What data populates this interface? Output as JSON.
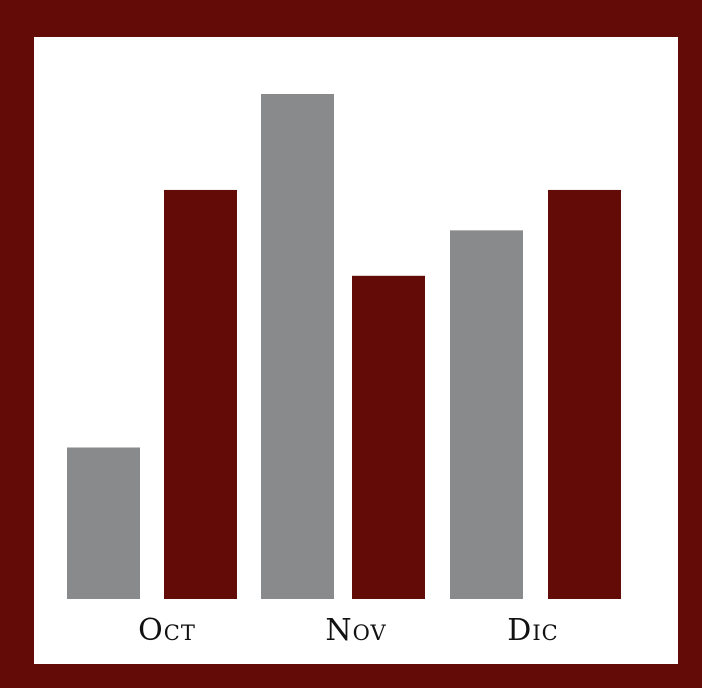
{
  "colors": {
    "frame": "#620b07",
    "background": "#ffffff",
    "series_a": "#898a8c",
    "series_b": "#620b07",
    "label_text": "#111111"
  },
  "chart_data": {
    "type": "bar",
    "title": "",
    "xlabel": "",
    "ylabel": "",
    "categories": [
      "Oct",
      "Nov",
      "Dic"
    ],
    "series": [
      {
        "color": "#898a8c",
        "values": [
          3.0,
          10.0,
          7.3
        ]
      },
      {
        "color": "#620b07",
        "values": [
          8.1,
          6.4,
          8.1
        ]
      }
    ],
    "ylim": [
      0,
      10.5
    ],
    "grid": false,
    "legend": "none"
  }
}
